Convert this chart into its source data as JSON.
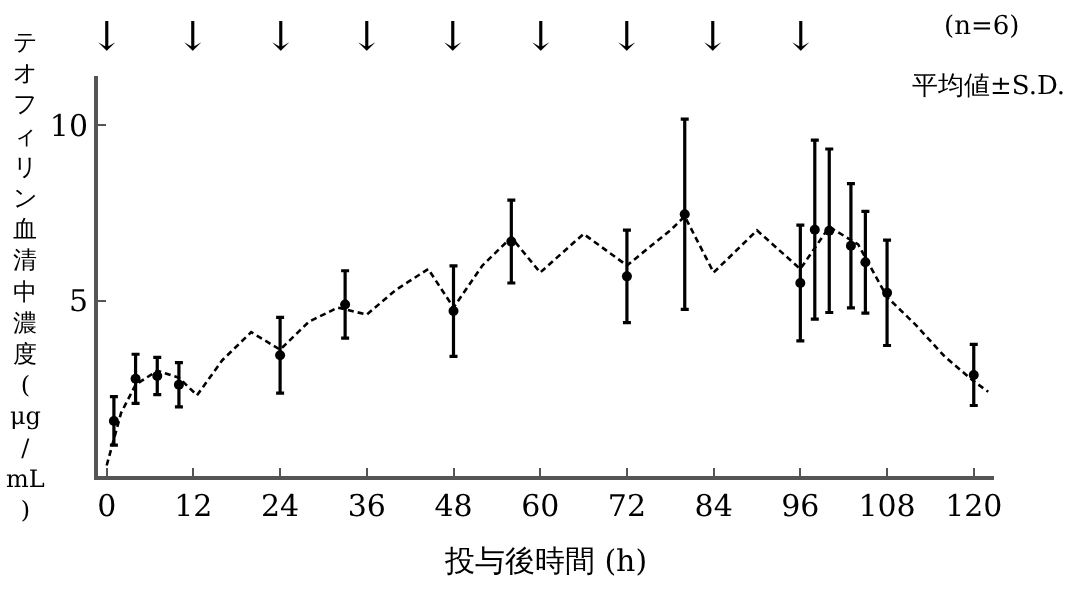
{
  "chart_data": {
    "type": "scatter",
    "xlabel": "投与後時間 (h)",
    "ylabel": "テオフィリン血清中濃度(μg/mL)",
    "xlim": [
      -1.2,
      122.8
    ],
    "xticks": [
      0,
      12,
      24,
      36,
      48,
      60,
      72,
      84,
      96,
      108,
      120
    ],
    "ylim": [
      0,
      11.4
    ],
    "yticks": [
      5,
      10
    ],
    "series": [
      {
        "color": "#000000",
        "marker": "circle",
        "x": [
          1,
          4,
          7,
          10,
          24,
          33,
          48,
          56,
          72,
          80,
          96,
          98,
          100,
          103,
          105,
          108,
          120
        ],
        "values": [
          1.57,
          2.77,
          2.85,
          2.6,
          3.44,
          4.89,
          4.7,
          6.68,
          5.69,
          7.46,
          5.5,
          7.02,
          6.99,
          6.56,
          6.09,
          5.22,
          2.88
        ],
        "errors": [
          0.69,
          0.7,
          0.53,
          0.63,
          1.08,
          0.96,
          1.29,
          1.18,
          1.32,
          2.71,
          1.65,
          2.55,
          2.33,
          1.77,
          1.45,
          1.5,
          0.87
        ]
      },
      {
        "type": "line",
        "line_style": "dashed",
        "color": "#000000",
        "x": [
          0,
          2,
          4,
          7,
          10,
          12.5,
          16,
          20,
          24,
          28,
          32,
          36,
          40,
          44.5,
          48,
          52,
          56,
          60,
          66,
          72,
          78,
          80,
          84,
          90,
          96,
          100,
          104,
          108,
          112,
          116,
          120,
          122
        ],
        "values": [
          0.3,
          1.8,
          2.6,
          3.0,
          2.8,
          2.3,
          3.3,
          4.1,
          3.6,
          4.4,
          4.8,
          4.6,
          5.3,
          5.9,
          4.8,
          6.0,
          6.8,
          5.8,
          6.9,
          6.0,
          7.0,
          7.4,
          5.8,
          7.0,
          5.9,
          7.1,
          6.6,
          5.1,
          4.3,
          3.4,
          2.7,
          2.4
        ]
      }
    ],
    "annotations": [
      "↓",
      "↓",
      "↓",
      "↓",
      "↓",
      "↓",
      "↓",
      "↓",
      "↓",
      "(n=6)",
      "平均値±S.D."
    ]
  }
}
